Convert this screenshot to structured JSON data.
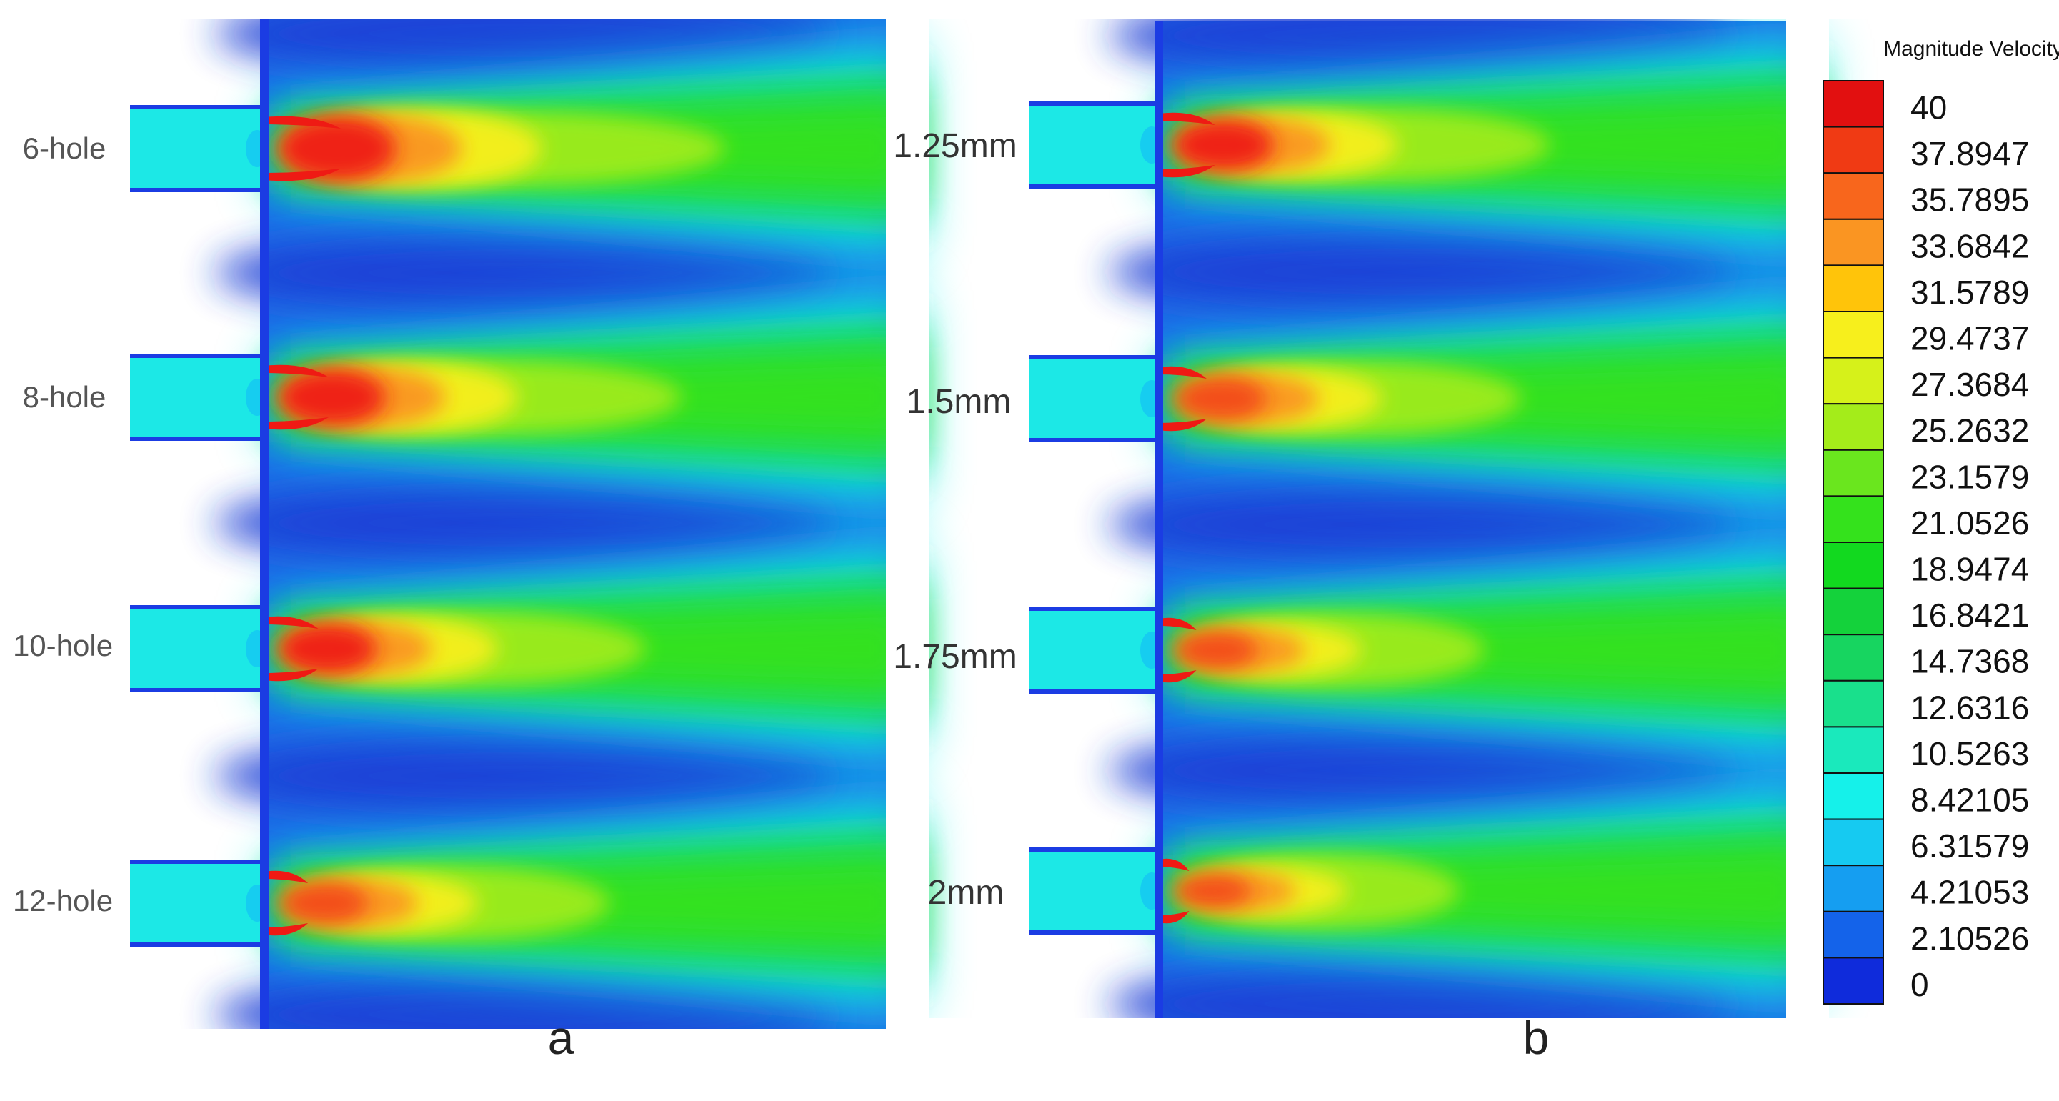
{
  "panels": [
    {
      "id": "a",
      "label": "a",
      "rows": [
        {
          "label": "6-hole",
          "intensity": 1.0
        },
        {
          "label": "8-hole",
          "intensity": 0.88
        },
        {
          "label": "10-hole",
          "intensity": 0.78
        },
        {
          "label": "12-hole",
          "intensity": 0.68
        }
      ]
    },
    {
      "id": "b",
      "label": "b",
      "rows": [
        {
          "label": "1.25mm",
          "intensity": 0.8
        },
        {
          "label": "1.5mm",
          "intensity": 0.72
        },
        {
          "label": "1.75mm",
          "intensity": 0.62
        },
        {
          "label": "2mm",
          "intensity": 0.55
        }
      ]
    }
  ],
  "colorbar": {
    "title": "Magnitude Velocity",
    "ticks": [
      "40",
      "37.8947",
      "35.7895",
      "33.6842",
      "31.5789",
      "29.4737",
      "27.3684",
      "25.2632",
      "23.1579",
      "21.0526",
      "18.9474",
      "16.8421",
      "14.7368",
      "12.6316",
      "10.5263",
      "8.42105",
      "6.31579",
      "4.21053",
      "2.10526",
      "0"
    ],
    "colors": [
      "#e21010",
      "#f03a14",
      "#f8661c",
      "#fa9522",
      "#ffc40a",
      "#f7ef1c",
      "#d6f11a",
      "#a4ec1a",
      "#6ae61e",
      "#34e21c",
      "#12d91f",
      "#14d23b",
      "#17d560",
      "#19e08c",
      "#1ae9bc",
      "#15f1ea",
      "#16caf1",
      "#159ef1",
      "#1463ea",
      "#0f2bdb"
    ]
  },
  "colors": {
    "background_jet": "#1e6ae6",
    "dark_band": "#1a3fd6",
    "wall": "#1b3ce3",
    "inlet": "#1ce8e6",
    "wake_green": "#2fe05a",
    "core_red": "#ef1a14"
  }
}
